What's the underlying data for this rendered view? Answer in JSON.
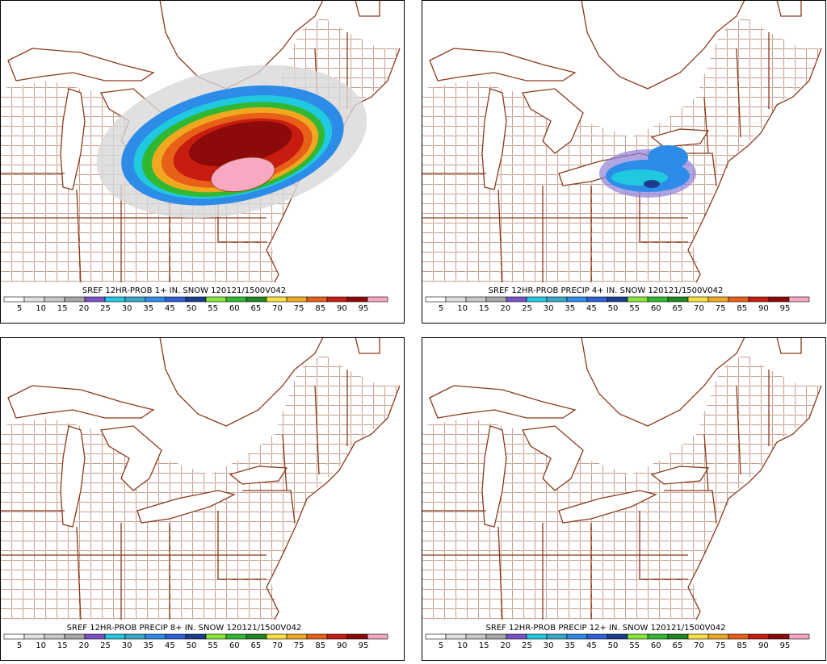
{
  "panels": [
    {
      "title": "SREF 12HR-PROB 1+ IN. SNOW 120121/1500V042"
    },
    {
      "title": "SREF 12HR-PROB PRECIP 4+ IN. SNOW 120121/1500V042"
    },
    {
      "title": "SREF 12HR-PROB PRECIP 8+ IN. SNOW 120121/1500V042"
    },
    {
      "title": "SREF 12HR-PROB PRECIP 12+ IN. SNOW 120121/1500V042"
    }
  ],
  "legend": {
    "labels": [
      "5",
      "10",
      "15",
      "20",
      "25",
      "30",
      "35",
      "45",
      "50",
      "55",
      "60",
      "65",
      "70",
      "75",
      "85",
      "90",
      "95"
    ],
    "colors": [
      "#ffffff",
      "#e0e0e0",
      "#c8c8c8",
      "#a8a8a8",
      "#7b52c6",
      "#20c8e0",
      "#38a8c8",
      "#2c8ce8",
      "#3060d8",
      "#1c3c90",
      "#88e838",
      "#30b830",
      "#208820",
      "#f8e040",
      "#f0a820",
      "#e86018",
      "#c81c10",
      "#8c0a0a",
      "#f8a8c0"
    ]
  }
}
